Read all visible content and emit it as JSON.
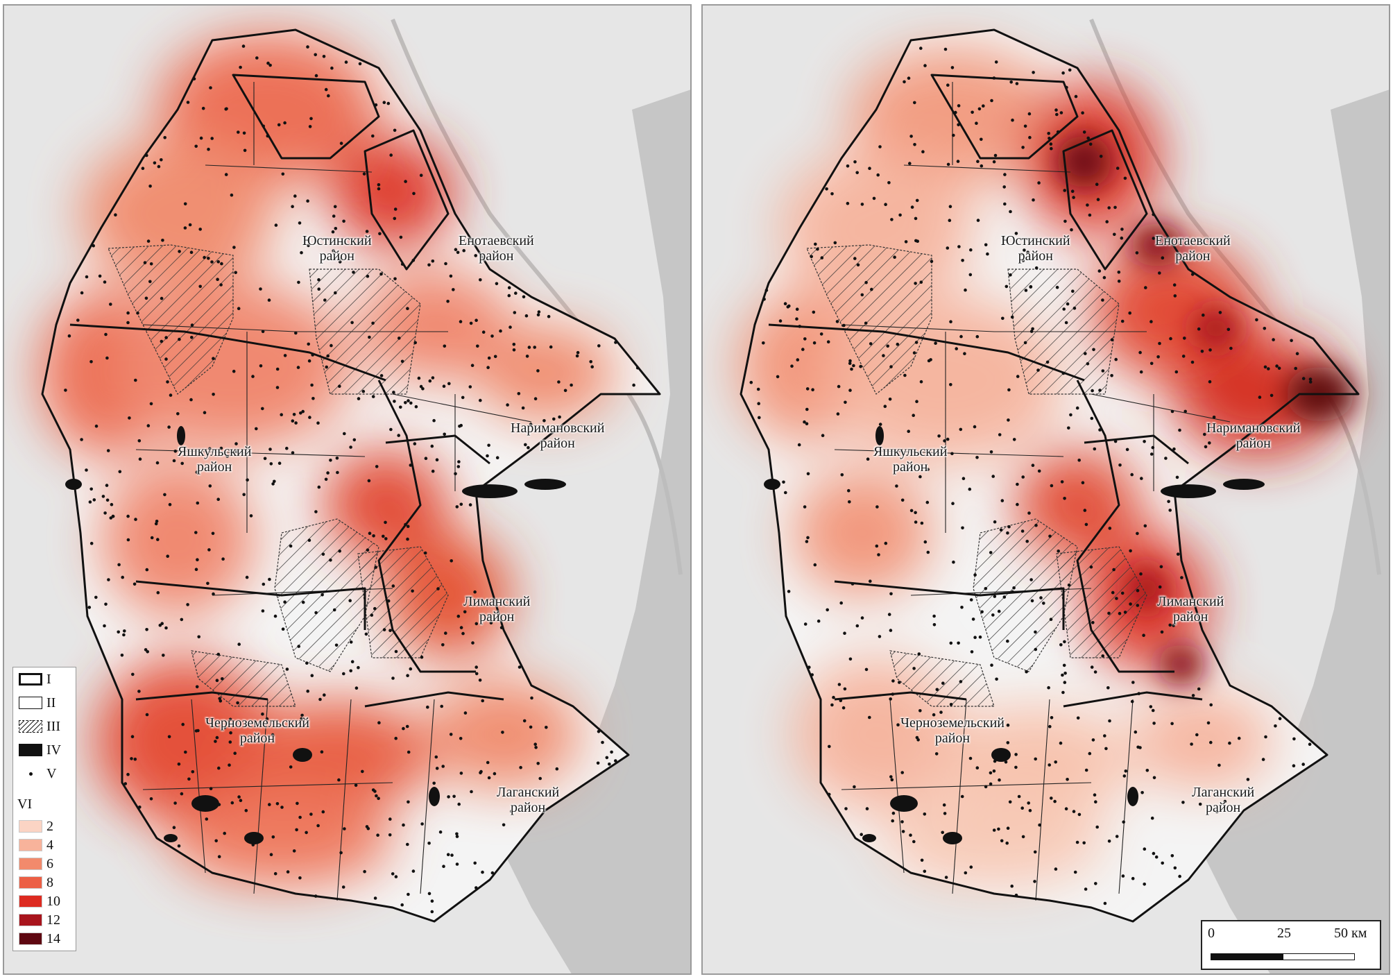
{
  "maps": [
    {
      "id": "left",
      "region_labels": [
        {
          "name": "justinsky",
          "lines": [
            "Юстинский",
            "район"
          ]
        },
        {
          "name": "enotaevsky",
          "lines": [
            "Енотаевский",
            "район"
          ]
        },
        {
          "name": "narimanovsky",
          "lines": [
            "Наримановский",
            "район"
          ]
        },
        {
          "name": "yashkulsky",
          "lines": [
            "Яшкульский",
            "район"
          ]
        },
        {
          "name": "limansky",
          "lines": [
            "Лиманский",
            "район"
          ]
        },
        {
          "name": "chernozemelsky",
          "lines": [
            "Черноземельский",
            "район"
          ]
        },
        {
          "name": "lagansky",
          "lines": [
            "Лаганский",
            "район"
          ]
        }
      ]
    },
    {
      "id": "right",
      "region_labels": [
        {
          "name": "justinsky",
          "lines": [
            "Юстинский",
            "район"
          ]
        },
        {
          "name": "enotaevsky",
          "lines": [
            "Енотаевский",
            "район"
          ]
        },
        {
          "name": "narimanovsky",
          "lines": [
            "Наримановский",
            "район"
          ]
        },
        {
          "name": "yashkulsky",
          "lines": [
            "Яшкульский",
            "район"
          ]
        },
        {
          "name": "limansky",
          "lines": [
            "Лиманский",
            "район"
          ]
        },
        {
          "name": "chernozemelsky",
          "lines": [
            "Черноземельский",
            "район"
          ]
        },
        {
          "name": "lagansky",
          "lines": [
            "Лаганский",
            "район"
          ]
        }
      ]
    }
  ],
  "legend": {
    "items": [
      {
        "symbol": "thick-border",
        "label": "I"
      },
      {
        "symbol": "thin-border",
        "label": "II"
      },
      {
        "symbol": "hatched",
        "label": "III"
      },
      {
        "symbol": "black-fill",
        "label": "IV"
      },
      {
        "symbol": "dot",
        "label": "V"
      }
    ],
    "density_title": "VI",
    "density_classes": [
      {
        "label": "2",
        "color": "#fbd4c4"
      },
      {
        "label": "4",
        "color": "#f8b39b"
      },
      {
        "label": "6",
        "color": "#f28a6c"
      },
      {
        "label": "8",
        "color": "#ec5f45"
      },
      {
        "label": "10",
        "color": "#dd2a20"
      },
      {
        "label": "12",
        "color": "#a8141c"
      },
      {
        "label": "14",
        "color": "#5e0711"
      }
    ]
  },
  "scale_bar": {
    "labels": [
      "0",
      "25",
      "50 км"
    ]
  },
  "colors": {
    "base_gray": "#e6e6e6",
    "sea_gray": "#c4c4c4",
    "border": "#111111"
  }
}
